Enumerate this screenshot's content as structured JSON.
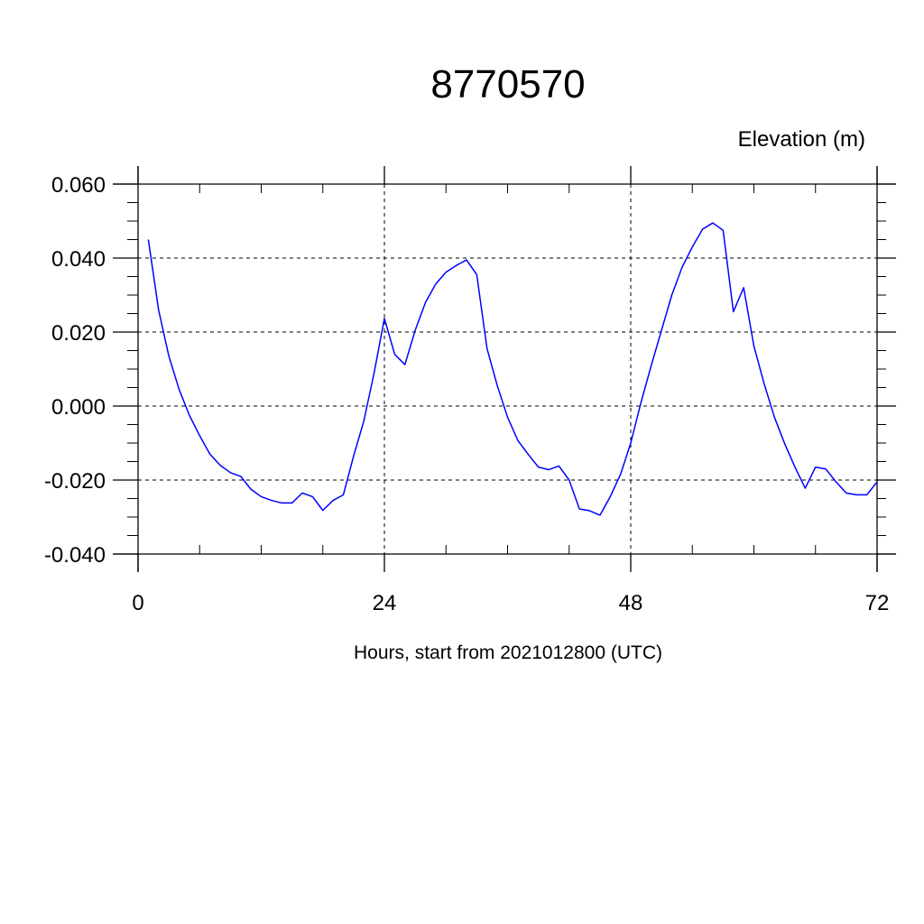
{
  "chart_data": {
    "type": "line",
    "title": "8770570",
    "ylabel": "Elevation (m)",
    "xlabel": "Hours, start from 2021012800 (UTC)",
    "xlim": [
      0,
      72
    ],
    "ylim": [
      -0.04,
      0.06
    ],
    "xticks": [
      0,
      24,
      48,
      72
    ],
    "xtick_labels": [
      "0",
      "24",
      "48",
      "72"
    ],
    "yticks": [
      -0.04,
      -0.02,
      0.0,
      0.02,
      0.04,
      0.06
    ],
    "ytick_labels": [
      "-0.040",
      "-0.020",
      "0.000",
      "0.020",
      "0.040",
      "0.060"
    ],
    "grid": true,
    "series": [
      {
        "color": "#0000ff",
        "x": [
          1,
          2,
          3,
          4,
          5,
          6,
          7,
          8,
          9,
          10,
          11,
          12,
          13,
          14,
          15,
          16,
          17,
          18,
          19,
          20,
          21,
          22,
          23,
          24,
          25,
          26,
          27,
          28,
          29,
          30,
          31,
          32,
          33,
          34,
          35,
          36,
          37,
          38,
          39,
          40,
          41,
          42,
          43,
          44,
          45,
          46,
          47,
          48,
          49,
          50,
          51,
          52,
          53,
          54,
          55,
          56,
          57,
          58,
          59,
          60,
          61,
          62,
          63,
          64,
          65,
          66,
          67,
          68,
          69,
          70,
          71,
          72
        ],
        "y": [
          0.045,
          0.026,
          0.0135,
          0.0045,
          -0.0025,
          -0.008,
          -0.013,
          -0.016,
          -0.018,
          -0.019,
          -0.0225,
          -0.0245,
          -0.0255,
          -0.0262,
          -0.0262,
          -0.0235,
          -0.0245,
          -0.0282,
          -0.0255,
          -0.024,
          -0.0135,
          -0.004,
          0.009,
          0.0237,
          0.014,
          0.0112,
          0.0205,
          0.028,
          0.033,
          0.0362,
          0.038,
          0.0395,
          0.0355,
          0.0155,
          0.0055,
          -0.003,
          -0.0093,
          -0.013,
          -0.0165,
          -0.0172,
          -0.0162,
          -0.02,
          -0.0278,
          -0.0283,
          -0.0295,
          -0.0245,
          -0.0185,
          -0.01,
          0.001,
          0.011,
          0.0205,
          0.03,
          0.0375,
          0.043,
          0.0478,
          0.0495,
          0.0475,
          0.0255,
          0.032,
          0.0162,
          0.006,
          -0.003,
          -0.0102,
          -0.0165,
          -0.0222,
          -0.0165,
          -0.017,
          -0.0205,
          -0.0235,
          -0.024,
          -0.024,
          -0.0205
        ]
      }
    ]
  }
}
